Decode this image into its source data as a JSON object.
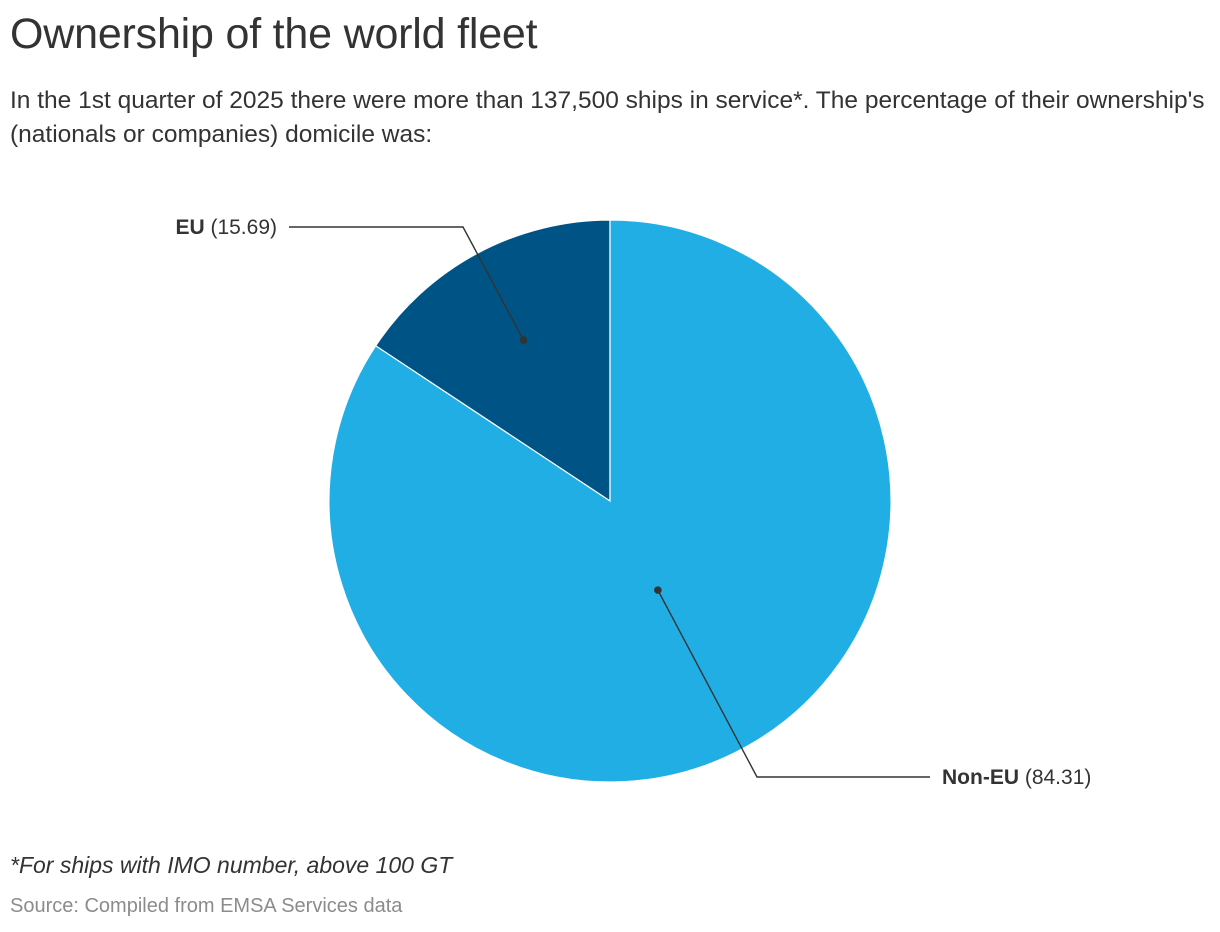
{
  "header": {
    "title": "Ownership of the world fleet",
    "subtitle": "In the 1st quarter of 2025 there were more than 137,500 ships in service*. The percentage of their ownership's (nationals or companies) domicile was:"
  },
  "chart_data": {
    "type": "pie",
    "slices": [
      {
        "name": "EU",
        "value": 15.69,
        "value_label": "(15.69)",
        "color": "#005385"
      },
      {
        "name": "Non-EU",
        "value": 84.31,
        "value_label": "(84.31)",
        "color": "#20aee5"
      }
    ],
    "start_angle_deg": 0,
    "direction": "counter-clockwise from top"
  },
  "footer": {
    "note": "*For ships with IMO number, above 100 GT",
    "source": "Source: Compiled from EMSA Services data"
  }
}
